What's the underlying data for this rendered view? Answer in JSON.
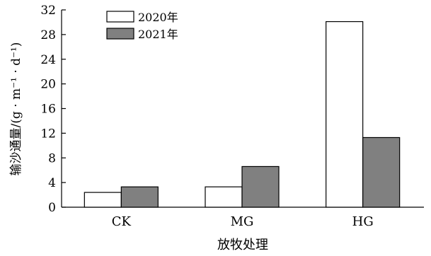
{
  "chart_data": {
    "type": "bar",
    "categories": [
      "CK",
      "MG",
      "HG"
    ],
    "series": [
      {
        "name": "2020年",
        "values": [
          2.4,
          3.3,
          30.1
        ],
        "color": "#ffffff"
      },
      {
        "name": "2021年",
        "values": [
          3.3,
          6.6,
          11.3
        ],
        "color": "#808080"
      }
    ],
    "yticks": [
      "0",
      "4",
      "8",
      "12",
      "16",
      "20",
      "24",
      "28",
      "32"
    ],
    "ylim": [
      0,
      32
    ],
    "xlabel": "放牧处理",
    "ylabel": "输沙通量/(g · m⁻¹ · d⁻¹)",
    "legend": "top-left",
    "grid": false
  }
}
